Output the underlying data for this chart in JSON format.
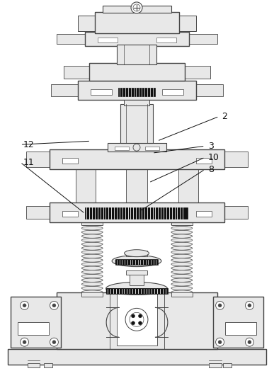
{
  "bg_color": "#ffffff",
  "line_color": "#444444",
  "dark_color": "#111111",
  "light_gray": "#e8e8e8",
  "mid_gray": "#cccccc",
  "dark_gray": "#999999"
}
